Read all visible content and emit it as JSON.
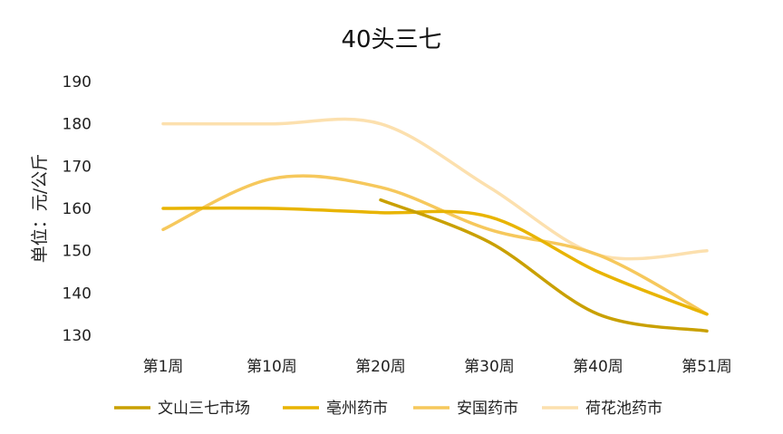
{
  "chart_data": {
    "type": "line",
    "title": "40头三七",
    "xlabel": "",
    "ylabel": "单位：元/公斤",
    "categories": [
      "第1周",
      "第10周",
      "第20周",
      "第30周",
      "第40周",
      "第51周"
    ],
    "y_ticks": [
      "190",
      "180",
      "170",
      "160",
      "150",
      "140",
      "130"
    ],
    "ylim": [
      130,
      190
    ],
    "grid": false,
    "smooth": true,
    "legend_position": "bottom",
    "series": [
      {
        "name": "文山三七市场",
        "color": "#C9A000",
        "values": [
          null,
          null,
          162,
          152,
          135,
          131
        ]
      },
      {
        "name": "亳州药市",
        "color": "#E8B400",
        "values": [
          160,
          160,
          159,
          158,
          145,
          135
        ]
      },
      {
        "name": "安国药市",
        "color": "#F6C85C",
        "values": [
          155,
          167,
          165,
          155,
          149,
          135
        ]
      },
      {
        "name": "荷花池药市",
        "color": "#FCE0AE",
        "values": [
          180,
          180,
          180,
          165,
          149,
          150
        ]
      }
    ]
  }
}
